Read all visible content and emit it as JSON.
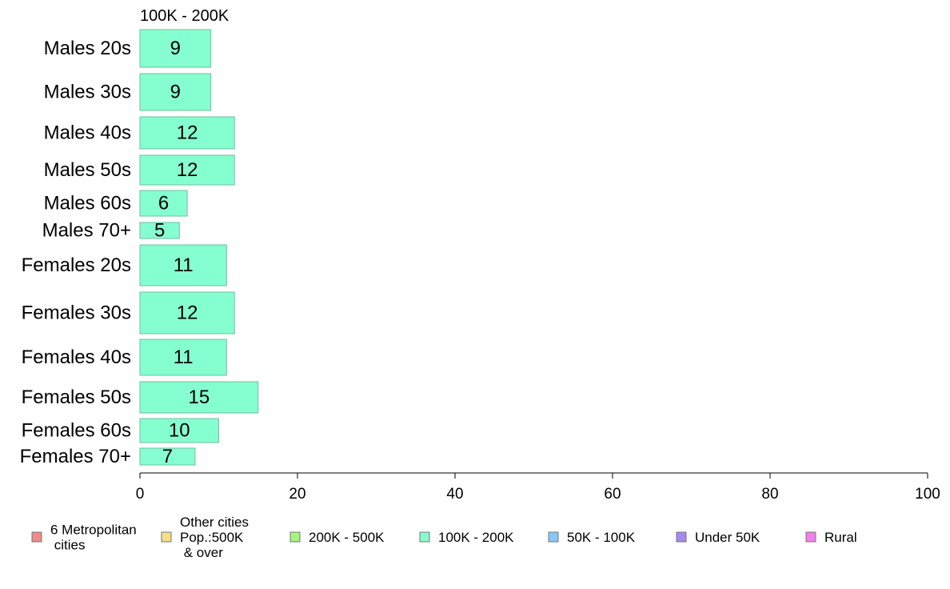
{
  "chart_data": {
    "type": "bar",
    "orientation": "horizontal",
    "title": "100K - 200K",
    "categories": [
      "Males 20s",
      "Males 30s",
      "Males 40s",
      "Males 50s",
      "Males 60s",
      "Males 70+",
      "Females 20s",
      "Females 30s",
      "Females 40s",
      "Females 50s",
      "Females 60s",
      "Females 70+"
    ],
    "values": [
      9,
      9,
      12,
      12,
      6,
      5,
      11,
      12,
      11,
      15,
      10,
      7
    ],
    "xlim": [
      0,
      100
    ],
    "xticks": [
      0,
      20,
      40,
      60,
      80,
      100
    ],
    "bar_color": "#85FFCF",
    "bar_stroke": "#6fbf9f",
    "grid": false,
    "legend_position": "bottom",
    "legend": [
      {
        "label": "6 Metropolitan\n cities",
        "color": "#F08A8A"
      },
      {
        "label": "Other cities\nPop.:500K\n & over",
        "color": "#F5DE85"
      },
      {
        "label": "200K - 500K",
        "color": "#A6F57F"
      },
      {
        "label": "100K - 200K",
        "color": "#85FFCF"
      },
      {
        "label": "50K - 100K",
        "color": "#88C8F5"
      },
      {
        "label": "Under 50K",
        "color": "#A68AF0"
      },
      {
        "label": "Rural",
        "color": "#F57FE8"
      }
    ]
  }
}
